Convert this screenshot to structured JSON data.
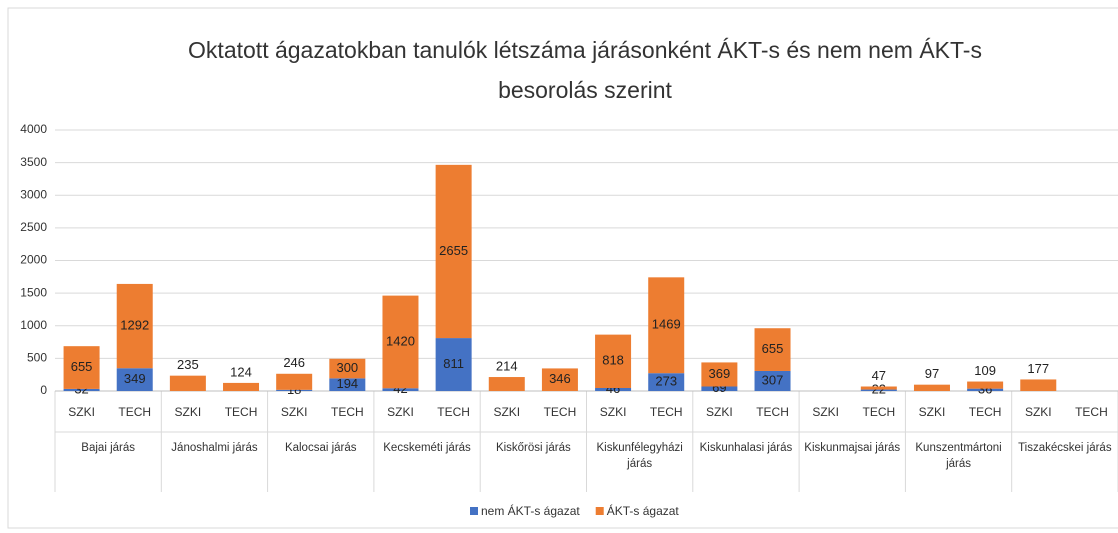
{
  "chart_data": {
    "type": "bar",
    "stacked": true,
    "title": "Oktatott ágazatokban tanulók létszáma járásonként ÁKT-s és nem nem ÁKT-s besorolás szerint",
    "categories": [
      "SZKI",
      "TECH",
      "SZKI",
      "TECH",
      "SZKI",
      "TECH",
      "SZKI",
      "TECH",
      "SZKI",
      "TECH",
      "SZKI",
      "TECH",
      "SZKI",
      "TECH",
      "SZKI",
      "TECH",
      "SZKI",
      "TECH",
      "SZKI",
      "TECH"
    ],
    "groups": [
      "Bajai járás",
      "Jánoshalmi járás",
      "Kalocsai járás",
      "Kecskeméti járás",
      "Kiskőrösi járás",
      "Kiskunfélegyházi járás",
      "Kiskunhalasi járás",
      "Kiskunmajsai járás",
      "Kunszentmártoni járás",
      "Tiszakécskei járás"
    ],
    "series": [
      {
        "name": "nem ÁKT-s ágazat",
        "color": "#4472c4",
        "values": [
          32,
          349,
          null,
          null,
          18,
          194,
          42,
          811,
          null,
          null,
          46,
          273,
          69,
          307,
          null,
          22,
          null,
          36,
          null,
          null
        ]
      },
      {
        "name": "ÁKT-s ágazat",
        "color": "#ed7d31",
        "values": [
          655,
          1292,
          235,
          124,
          246,
          300,
          1420,
          2655,
          214,
          346,
          818,
          1469,
          369,
          655,
          null,
          47,
          97,
          109,
          177,
          null
        ]
      }
    ],
    "ylim": [
      0,
      4000
    ],
    "yticks": [
      0,
      500,
      1000,
      1500,
      2000,
      2500,
      3000,
      3500,
      4000
    ],
    "grid": true,
    "legend": "bottom"
  }
}
